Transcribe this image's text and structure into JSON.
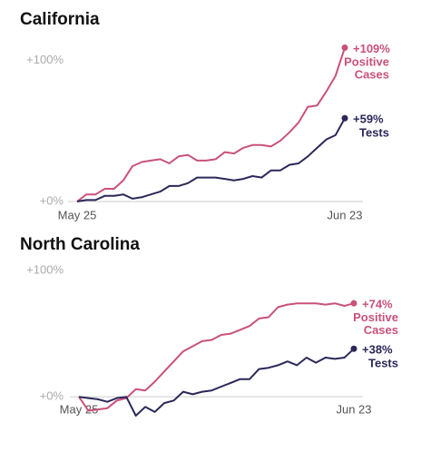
{
  "chart_data": [
    {
      "type": "line",
      "title": "California",
      "categories": [
        "May 25",
        null,
        null,
        null,
        null,
        null,
        null,
        null,
        null,
        null,
        null,
        null,
        null,
        null,
        null,
        null,
        null,
        null,
        null,
        null,
        null,
        null,
        null,
        null,
        null,
        null,
        null,
        null,
        null,
        "Jun 23"
      ],
      "ylim": [
        0,
        110
      ],
      "yticks": [
        {
          "value": 0,
          "label": "+0%"
        },
        {
          "value": 100,
          "label": "+100%"
        }
      ],
      "series": [
        {
          "name": "Positive Cases",
          "color": "#c9517a",
          "values": [
            0,
            5,
            5,
            9,
            9,
            15,
            25,
            28,
            29,
            30,
            27,
            32,
            33,
            29,
            29,
            30,
            35,
            34,
            38,
            40,
            40,
            39,
            43,
            49,
            56,
            67,
            68,
            78,
            89,
            109
          ],
          "value_labels": [
            null,
            null,
            null,
            null,
            null,
            null,
            null,
            null,
            null,
            null,
            null,
            null,
            null,
            null,
            null,
            null,
            null,
            null,
            null,
            null,
            null,
            null,
            null,
            null,
            null,
            null,
            null,
            null,
            null,
            "+109%"
          ]
        },
        {
          "name": "Tests",
          "color": "#2b2859",
          "values": [
            0,
            1,
            1,
            4,
            4,
            5,
            2,
            3,
            5,
            7,
            11,
            11,
            13,
            17,
            17,
            17,
            16,
            15,
            16,
            18,
            17,
            22,
            22,
            26,
            27,
            32,
            38,
            44,
            47,
            59
          ],
          "value_labels": [
            null,
            null,
            null,
            null,
            null,
            null,
            null,
            null,
            null,
            null,
            null,
            null,
            null,
            null,
            null,
            null,
            null,
            null,
            null,
            null,
            null,
            null,
            null,
            null,
            null,
            null,
            null,
            null,
            null,
            "+59%"
          ]
        }
      ]
    },
    {
      "type": "line",
      "title": "North Carolina",
      "categories": [
        "May 25",
        null,
        null,
        null,
        null,
        null,
        null,
        null,
        null,
        null,
        null,
        null,
        null,
        null,
        null,
        null,
        null,
        null,
        null,
        null,
        null,
        null,
        null,
        null,
        null,
        null,
        null,
        null,
        null,
        "Jun 23"
      ],
      "ylim": [
        -20,
        100
      ],
      "yticks": [
        {
          "value": 0,
          "label": "+0%"
        },
        {
          "value": 100,
          "label": "+100%"
        }
      ],
      "series": [
        {
          "name": "Positive Cases",
          "color": "#c9517a",
          "values": [
            0,
            -11,
            -10,
            -9,
            -3,
            -1,
            6,
            5,
            12,
            20,
            28,
            36,
            40,
            44,
            45,
            49,
            50,
            53,
            56,
            62,
            63,
            71,
            73,
            74,
            74,
            74,
            73,
            74,
            72,
            74
          ],
          "value_labels": [
            null,
            null,
            null,
            null,
            null,
            null,
            null,
            null,
            null,
            null,
            null,
            null,
            null,
            null,
            null,
            null,
            null,
            null,
            null,
            null,
            null,
            null,
            null,
            null,
            null,
            null,
            null,
            null,
            null,
            "+74%"
          ]
        },
        {
          "name": "Tests",
          "color": "#2b2859",
          "values": [
            0,
            -1,
            -2,
            -4,
            -1,
            0,
            -15,
            -8,
            -12,
            -5,
            -3,
            4,
            2,
            4,
            5,
            8,
            11,
            14,
            14,
            22,
            23,
            25,
            28,
            25,
            31,
            27,
            31,
            30,
            31,
            38
          ],
          "value_labels": [
            null,
            null,
            null,
            null,
            null,
            null,
            null,
            null,
            null,
            null,
            null,
            null,
            null,
            null,
            null,
            null,
            null,
            null,
            null,
            null,
            null,
            null,
            null,
            null,
            null,
            null,
            null,
            null,
            null,
            "+38%"
          ]
        }
      ]
    }
  ]
}
